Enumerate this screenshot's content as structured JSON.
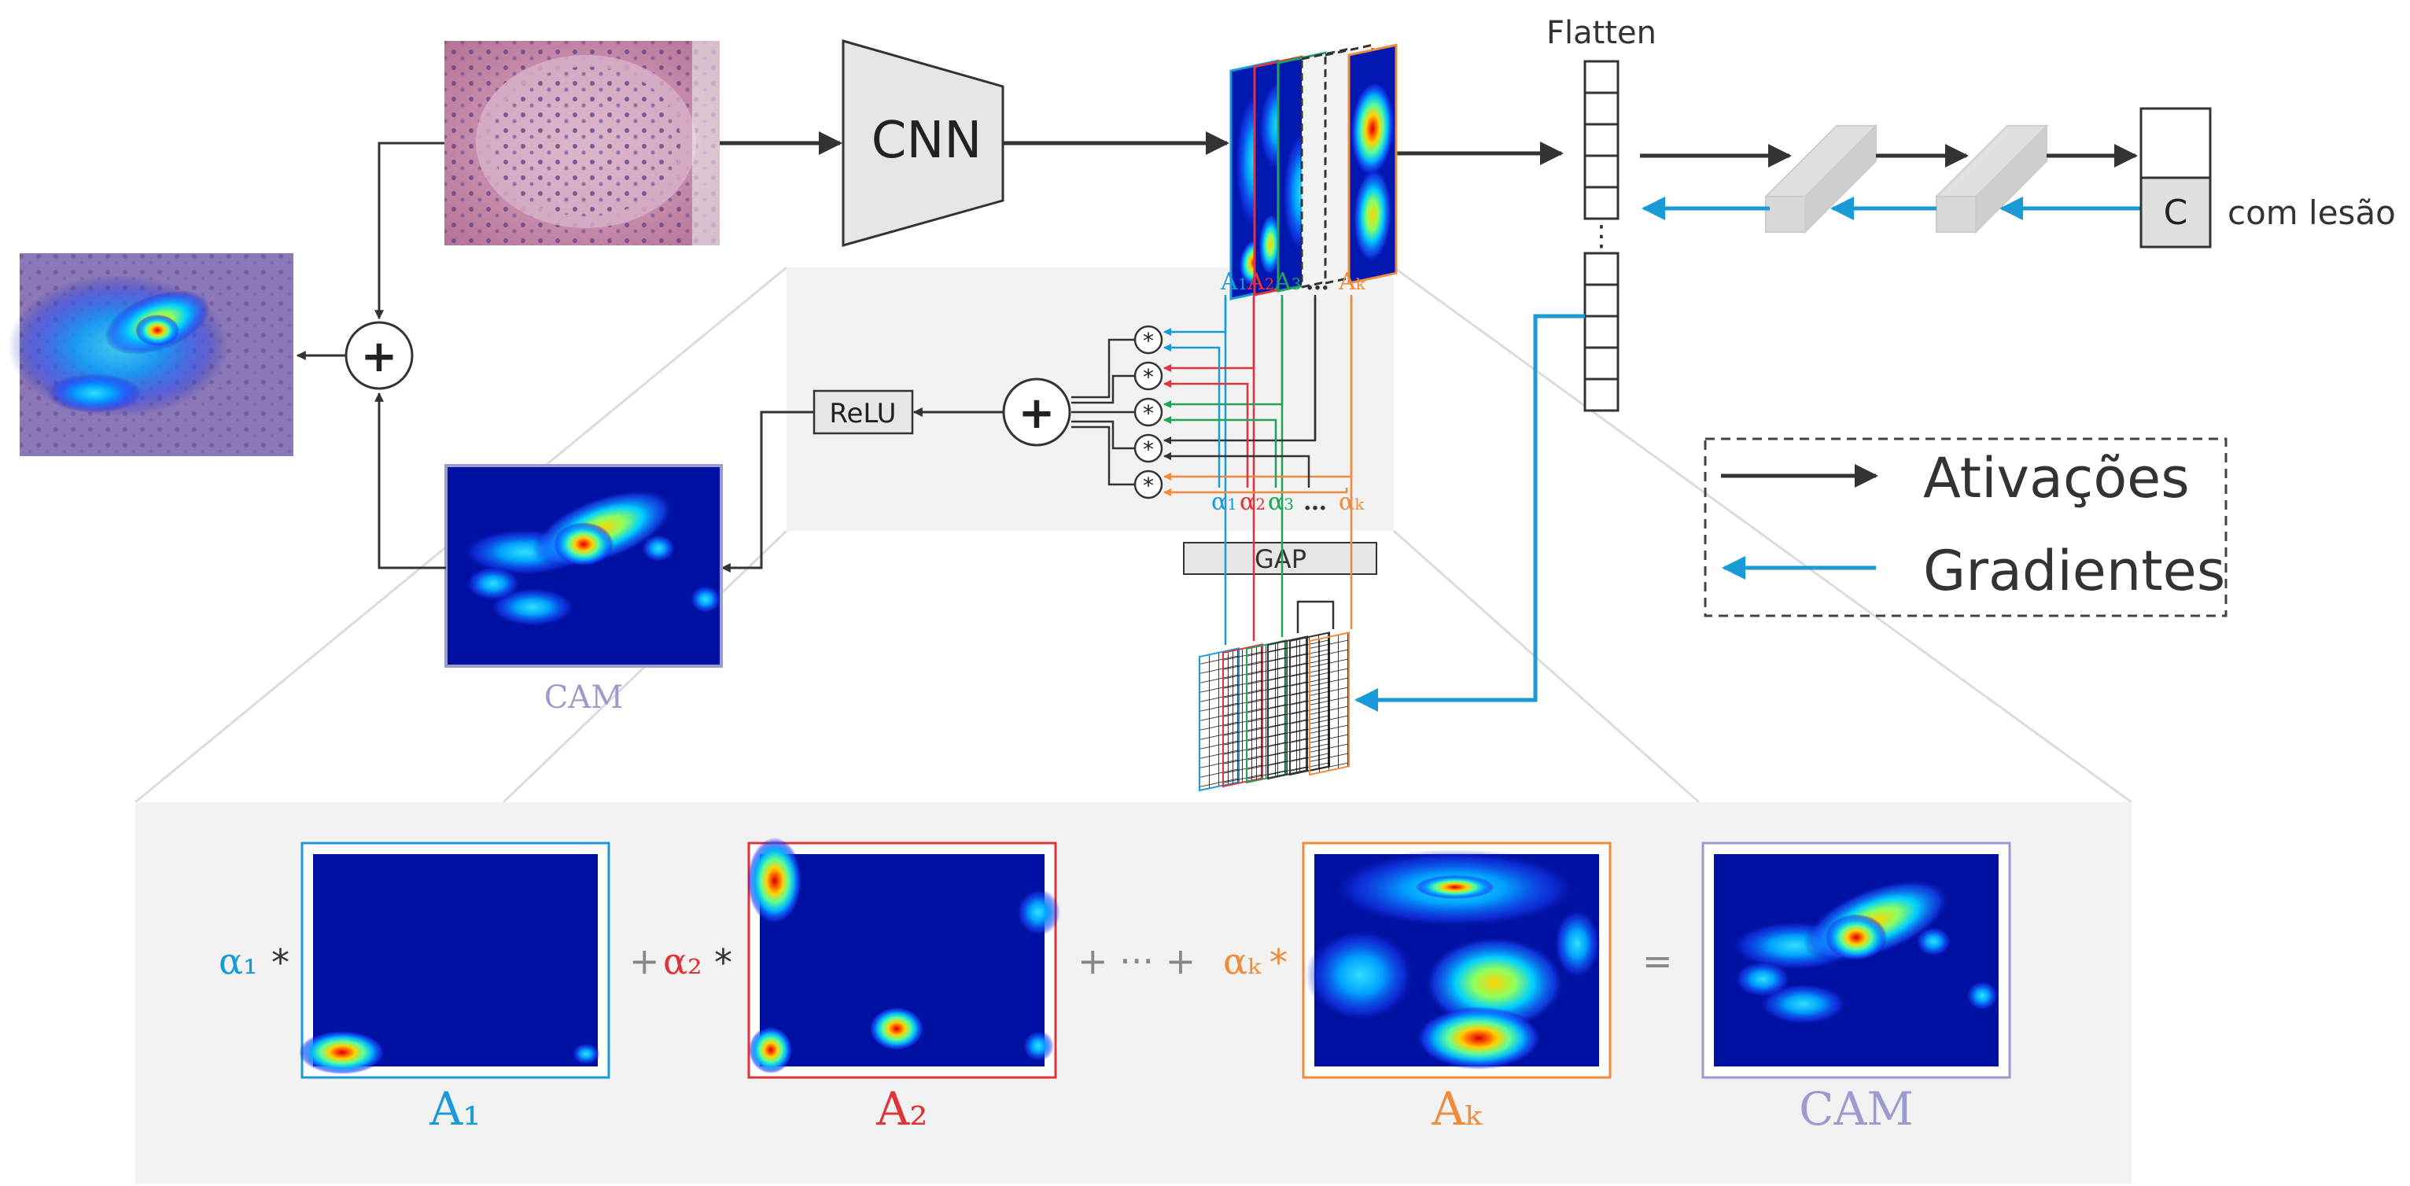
{
  "colors": {
    "blue": "#1a9ad6",
    "red": "#e0333a",
    "green": "#22a35a",
    "orange": "#f08a3c",
    "dark": "#333333",
    "cam_purple": "#9b9bd0",
    "panel_gray": "#f2f2f2"
  },
  "top": {
    "cnn_label": "CNN",
    "flatten_label": "Flatten",
    "flatten_ellipsis": "⋮",
    "class_cell_label": "C",
    "class_text": "com lesão",
    "fmap_labels": [
      {
        "sub": "1",
        "color": "blue"
      },
      {
        "sub": "2",
        "color": "red"
      },
      {
        "sub": "3",
        "color": "green"
      },
      {
        "sub": "k",
        "color": "orange"
      }
    ],
    "fmap_base": "A",
    "fmap_ellipsis": "…",
    "alpha_base": "α",
    "alpha_ellipsis": "…",
    "relu_label": "ReLU",
    "gap_label": "GAP",
    "plus_symbol": "+",
    "mult_symbol": "*",
    "cam_label": "CAM"
  },
  "legend": {
    "activations_label": "Ativações",
    "gradients_label": "Gradientes"
  },
  "equation": {
    "alpha1": "α₁",
    "alpha2": "α₂",
    "alphak": "αₖ",
    "times": "*",
    "plus": "+",
    "plus_dots_plus": "+ ··· +",
    "equals": "=",
    "a1_label": "A₁",
    "a2_label": "A₂",
    "ak_label": "Aₖ",
    "cam_label": "CAM"
  }
}
